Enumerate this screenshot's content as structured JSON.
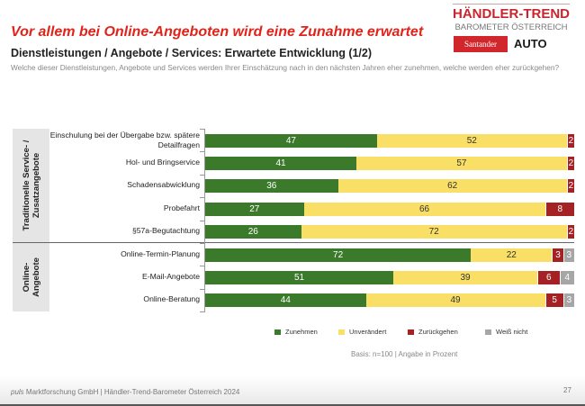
{
  "headline": "Vor allem bei Online-Angeboten wird eine Zunahme erwartet",
  "subtitle": "Dienstleistungen / Angebote / Services: Erwartete Entwicklung (1/2)",
  "question": "Welche dieser Dienstleistungen, Angebote und Services werden Ihrer Einschätzung nach in den nächsten Jahren eher zunehmen, welche werden eher zurückgehen?",
  "logo": {
    "line1": "HÄNDLER-TREND",
    "line2": "BAROMETER ÖSTERREICH",
    "sponsor1": "Santander",
    "sponsor2": "AUTO"
  },
  "basis": "Basis: n=100 | Angabe in Prozent",
  "footer": {
    "brand": "puls",
    "text": " Marktforschung GmbH | Händler-Trend-Barometer Österreich 2024"
  },
  "page_number": "27",
  "chart_data": {
    "type": "bar",
    "orientation": "horizontal",
    "stacked": true,
    "groups": [
      {
        "label": "Traditionelle Service- / Zusatzangebote",
        "categories": [
          0,
          1,
          2,
          3,
          4
        ]
      },
      {
        "label": "Online-Angebote",
        "categories": [
          5,
          6,
          7
        ]
      }
    ],
    "categories": [
      "Einschulung bei der Übergabe bzw. spätere Detailfragen",
      "Hol- und Bringservice",
      "Schadensabwicklung",
      "Probefahrt",
      "§57a-Begutachtung",
      "Online-Termin-Planung",
      "E-Mail-Angebote",
      "Online-Beratung"
    ],
    "series": [
      {
        "name": "Zunehmen",
        "color": "#3b7a2a",
        "values": [
          47,
          41,
          36,
          27,
          26,
          72,
          51,
          44
        ]
      },
      {
        "name": "Unverändert",
        "color": "#fadf66",
        "values": [
          52,
          57,
          62,
          66,
          72,
          22,
          39,
          49
        ]
      },
      {
        "name": "Zurückgehen",
        "color": "#a52224",
        "values": [
          2,
          2,
          2,
          8,
          2,
          3,
          6,
          5
        ]
      },
      {
        "name": "Weiß nicht",
        "color": "#a6a6a6",
        "values": [
          0,
          0,
          0,
          0,
          0,
          3,
          4,
          3
        ]
      }
    ],
    "legend": "bottom",
    "grid": false
  }
}
